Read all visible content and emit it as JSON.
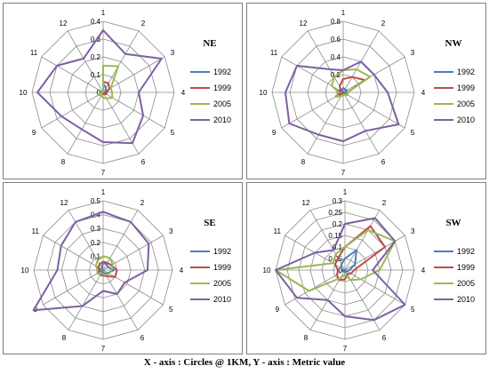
{
  "caption": "X - axis : Circles @ 1KM, Y - axis : Metric value",
  "series_names": [
    "1992",
    "1999",
    "2005",
    "2010"
  ],
  "colors": {
    "1992": "#4a7ebb",
    "1999": "#be4b48",
    "2005": "#98b954",
    "2010": "#7d60a0",
    "grid": "#8c8c8c",
    "frame": "#7f7f7f"
  },
  "chart_data": [
    {
      "type": "radar",
      "title": "NE",
      "categories": [
        "1",
        "2",
        "3",
        "4",
        "5",
        "6",
        "7",
        "8",
        "9",
        "10",
        "11",
        "12"
      ],
      "scale_labels": [
        "0",
        "0.1",
        "0.2",
        "0.3",
        "0.4"
      ],
      "rmax": 0.4,
      "series": [
        {
          "name": "1992",
          "values": [
            0.05,
            0.03,
            0.02,
            0.01,
            0.01,
            0.01,
            0.01,
            0.0,
            0.0,
            0.0,
            0.0,
            0.0
          ]
        },
        {
          "name": "1999",
          "values": [
            0.06,
            0.06,
            0.04,
            0.02,
            0.02,
            0.01,
            0.01,
            0.0,
            0.0,
            0.01,
            0.01,
            0.0
          ]
        },
        {
          "name": "2005",
          "values": [
            0.15,
            0.17,
            0.05,
            0.05,
            0.06,
            0.04,
            0.03,
            0.02,
            0.03,
            0.01,
            0.01,
            0.0
          ]
        },
        {
          "name": "2010",
          "values": [
            0.35,
            0.25,
            0.38,
            0.2,
            0.26,
            0.33,
            0.28,
            0.24,
            0.27,
            0.37,
            0.3,
            0.22
          ]
        }
      ]
    },
    {
      "type": "radar",
      "title": "NW",
      "categories": [
        "1",
        "2",
        "3",
        "4",
        "5",
        "6",
        "7",
        "8",
        "9",
        "10",
        "11",
        "12"
      ],
      "scale_labels": [
        "0",
        "0.2",
        "0.4",
        "0.6",
        "0.8"
      ],
      "rmax": 0.8,
      "series": [
        {
          "name": "1992",
          "values": [
            0.05,
            0.04,
            0.05,
            0.02,
            0.01,
            0.01,
            0.0,
            0.0,
            0.0,
            0.01,
            0.02,
            0.03
          ]
        },
        {
          "name": "1999",
          "values": [
            0.15,
            0.2,
            0.28,
            0.05,
            0.04,
            0.03,
            0.02,
            0.02,
            0.05,
            0.04,
            0.03,
            0.08
          ]
        },
        {
          "name": "2005",
          "values": [
            0.25,
            0.3,
            0.35,
            0.05,
            0.06,
            0.03,
            0.03,
            0.05,
            0.1,
            0.05,
            0.15,
            0.2
          ]
        },
        {
          "name": "2010",
          "values": [
            0.25,
            0.4,
            0.4,
            0.5,
            0.72,
            0.5,
            0.55,
            0.55,
            0.7,
            0.65,
            0.6,
            0.3
          ]
        }
      ]
    },
    {
      "type": "radar",
      "title": "SE",
      "categories": [
        "1",
        "2",
        "3",
        "4",
        "5",
        "6",
        "7",
        "8",
        "9",
        "10",
        "11",
        "12"
      ],
      "scale_labels": [
        "0",
        "0.1",
        "0.2",
        "0.3",
        "0.4",
        "0.5"
      ],
      "rmax": 0.5,
      "series": [
        {
          "name": "1992",
          "values": [
            0.05,
            0.05,
            0.04,
            0.08,
            0.04,
            0.03,
            0.02,
            0.02,
            0.01,
            0.01,
            0.01,
            0.02
          ]
        },
        {
          "name": "1999",
          "values": [
            0.06,
            0.06,
            0.07,
            0.1,
            0.1,
            0.05,
            0.04,
            0.04,
            0.04,
            0.03,
            0.04,
            0.05
          ]
        },
        {
          "name": "2005",
          "values": [
            0.1,
            0.1,
            0.08,
            0.06,
            0.05,
            0.04,
            0.03,
            0.03,
            0.05,
            0.04,
            0.06,
            0.08
          ]
        },
        {
          "name": "2010",
          "values": [
            0.42,
            0.4,
            0.38,
            0.32,
            0.18,
            0.2,
            0.15,
            0.3,
            0.58,
            0.33,
            0.35,
            0.4
          ]
        }
      ]
    },
    {
      "type": "radar",
      "title": "SW",
      "categories": [
        "1",
        "2",
        "3",
        "4",
        "5",
        "6",
        "7",
        "8",
        "9",
        "10",
        "11",
        "12"
      ],
      "scale_labels": [
        "0",
        "0.05",
        "0.1",
        "0.15",
        "0.2",
        "0.25",
        "0.3"
      ],
      "rmax": 0.3,
      "series": [
        {
          "name": "1992",
          "values": [
            0.05,
            0.1,
            0.05,
            0.02,
            0.01,
            0.01,
            0.01,
            0.0,
            0.01,
            0.01,
            0.02,
            0.03
          ]
        },
        {
          "name": "1999",
          "values": [
            0.1,
            0.22,
            0.2,
            0.04,
            0.03,
            0.02,
            0.04,
            0.05,
            0.04,
            0.03,
            0.05,
            0.06
          ]
        },
        {
          "name": "2005",
          "values": [
            0.1,
            0.2,
            0.25,
            0.15,
            0.08,
            0.05,
            0.02,
            0.04,
            0.18,
            0.3,
            0.06,
            0.08
          ]
        },
        {
          "name": "2010",
          "values": [
            0.2,
            0.26,
            0.25,
            0.12,
            0.3,
            0.25,
            0.2,
            0.15,
            0.24,
            0.3,
            0.15,
            0.1
          ]
        }
      ]
    }
  ]
}
